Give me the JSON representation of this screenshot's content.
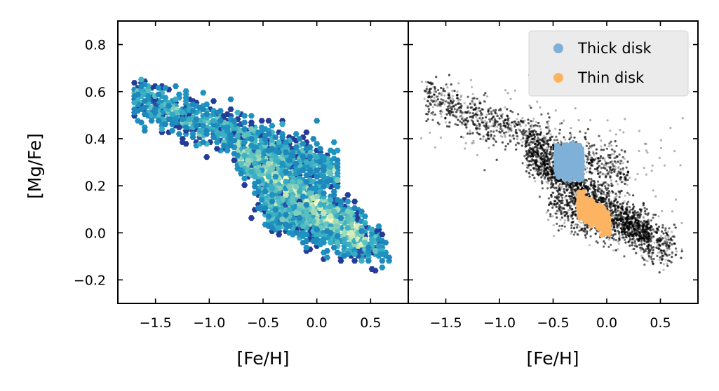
{
  "figure": {
    "left_panel": {
      "name": "hexbin-density-panel"
    },
    "right_panel": {
      "name": "scatter-population-panel"
    }
  },
  "chart_data": [
    {
      "type": "heatmap",
      "style": "hexbin density",
      "colormap": "YlGnBu_r (dark navy at low density, pale yellow at high density)",
      "xlabel": "[Fe/H]",
      "ylabel": "[Mg/Fe]",
      "xlim": [
        -1.85,
        0.85
      ],
      "ylim": [
        -0.3,
        0.9
      ],
      "xticks": [
        -1.5,
        -1.0,
        -0.5,
        0.0,
        0.5
      ],
      "xtick_labels": [
        "−1.5",
        "−1.0",
        "−0.5",
        "0.0",
        "0.5"
      ],
      "yticks": [
        -0.2,
        0.0,
        0.2,
        0.4,
        0.6,
        0.8
      ],
      "ytick_labels": [
        "−0.2",
        "0.0",
        "0.2",
        "0.4",
        "0.6",
        "0.8"
      ],
      "density_ridges": [
        {
          "x": -1.65,
          "y": 0.56,
          "density": 0.05
        },
        {
          "x": -1.3,
          "y": 0.47,
          "density": 0.15
        },
        {
          "x": -0.9,
          "y": 0.38,
          "density": 0.3
        },
        {
          "x": -0.5,
          "y": 0.3,
          "density": 0.85
        },
        {
          "x": -0.4,
          "y": 0.22,
          "density": 0.75
        },
        {
          "x": -0.2,
          "y": 0.08,
          "density": 0.9
        },
        {
          "x": 0.0,
          "y": 0.03,
          "density": 1.0
        },
        {
          "x": 0.3,
          "y": -0.03,
          "density": 0.35
        }
      ],
      "grid": false
    },
    {
      "type": "scatter",
      "xlabel": "[Fe/H]",
      "ylabel": "",
      "xlim": [
        -1.85,
        0.85
      ],
      "ylim": [
        -0.3,
        0.9
      ],
      "xticks": [
        -1.5,
        -1.0,
        -0.5,
        0.0,
        0.5
      ],
      "xtick_labels": [
        "−1.5",
        "−1.0",
        "−0.5",
        "0.0",
        "0.5"
      ],
      "legend_placement": "top-right",
      "series": [
        {
          "name": "",
          "color": "#000000",
          "alpha": 0.25,
          "description": "all stars (background)",
          "centers": [
            {
              "x": -1.6,
              "y": 0.56
            },
            {
              "x": -1.2,
              "y": 0.46
            },
            {
              "x": -0.8,
              "y": 0.36
            },
            {
              "x": -0.4,
              "y": 0.24
            },
            {
              "x": -0.1,
              "y": 0.12
            },
            {
              "x": 0.2,
              "y": 0.04
            },
            {
              "x": 0.5,
              "y": 0.02
            }
          ]
        },
        {
          "name": "Thick disk",
          "color": "#7fb0d8",
          "center": {
            "x": -0.35,
            "y": 0.3
          },
          "spread": {
            "x": 0.12,
            "y": 0.05
          }
        },
        {
          "name": "Thin disk",
          "color": "#fdb462",
          "center": {
            "x": -0.12,
            "y": 0.08
          },
          "spread": {
            "x": 0.14,
            "y": 0.04
          }
        }
      ],
      "grid": false
    }
  ],
  "legend": {
    "entries": [
      {
        "label": "Thick disk",
        "color": "#7fb0d8"
      },
      {
        "label": "Thin disk",
        "color": "#fdb462"
      }
    ]
  }
}
